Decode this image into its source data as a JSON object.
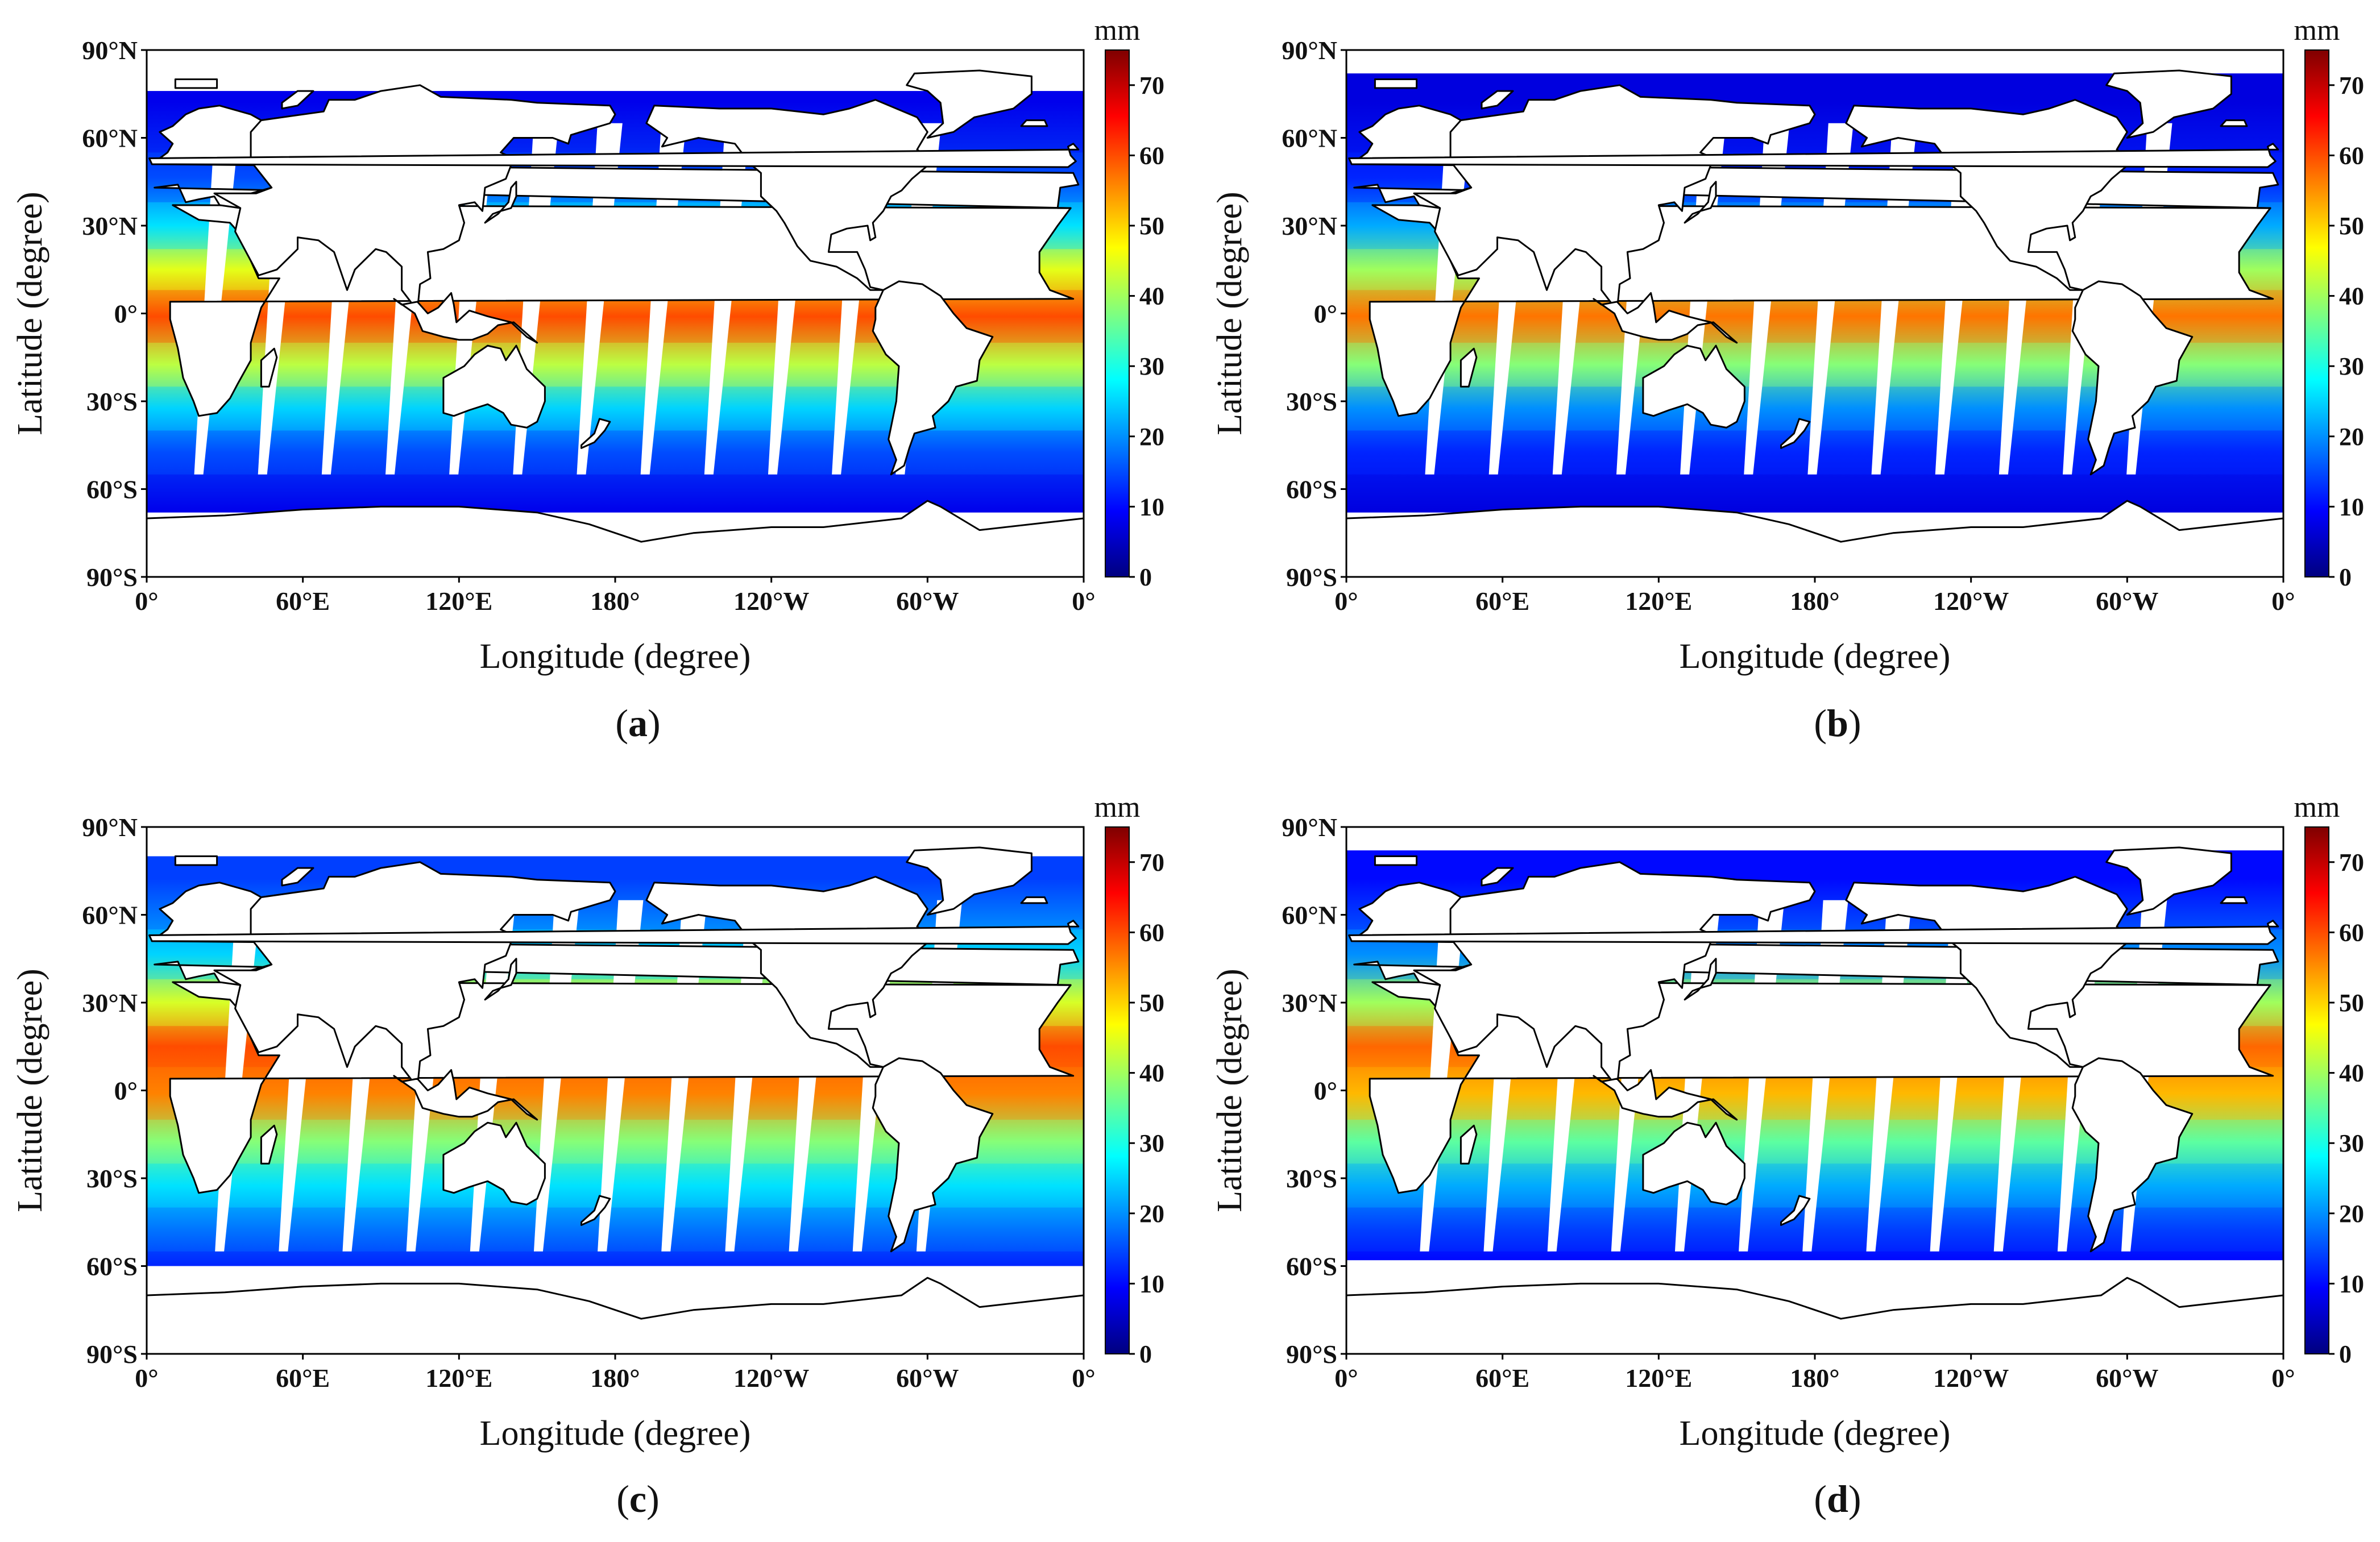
{
  "chart_data": [
    {
      "type": "heatmap",
      "panel_label": "a",
      "xlabel": "Longitude (degree)",
      "ylabel": "Latitude (degree)",
      "x_ticks": [
        "0°",
        "60°E",
        "120°E",
        "180°",
        "120°W",
        "60°W",
        "0°"
      ],
      "y_ticks": [
        "90°N",
        "60°N",
        "30°N",
        "0°",
        "30°S",
        "60°S",
        "90°S"
      ],
      "xlim": [
        0,
        360
      ],
      "ylim": [
        -90,
        90
      ],
      "colorbar": {
        "unit": "mm",
        "range": [
          0,
          75
        ],
        "ticks": [
          0,
          10,
          20,
          30,
          40,
          50,
          60,
          70
        ]
      },
      "ice_edge": {
        "north": 76,
        "south": -68
      },
      "swath_gaps": {
        "count": 12,
        "first_lon": 20,
        "spacing": 24.5,
        "lat_range": [
          -55,
          65
        ]
      },
      "zones": [
        {
          "lat": [
            -90,
            -55
          ],
          "value": 8
        },
        {
          "lat": [
            -55,
            -40
          ],
          "value": 15
        },
        {
          "lat": [
            -40,
            -25
          ],
          "value": 25
        },
        {
          "lat": [
            -25,
            -10
          ],
          "value": 42
        },
        {
          "lat": [
            -10,
            8
          ],
          "value": 60
        },
        {
          "lat": [
            8,
            22
          ],
          "value": 45
        },
        {
          "lat": [
            22,
            38
          ],
          "value": 26
        },
        {
          "lat": [
            38,
            55
          ],
          "value": 15
        },
        {
          "lat": [
            55,
            90
          ],
          "value": 8
        }
      ]
    },
    {
      "type": "heatmap",
      "panel_label": "b",
      "xlabel": "Longitude (degree)",
      "ylabel": "Latitude (degree)",
      "x_ticks": [
        "0°",
        "60°E",
        "120°E",
        "180°",
        "120°W",
        "60°W",
        "0°"
      ],
      "y_ticks": [
        "90°N",
        "60°N",
        "30°N",
        "0°",
        "30°S",
        "60°S",
        "90°S"
      ],
      "xlim": [
        0,
        360
      ],
      "ylim": [
        -90,
        90
      ],
      "colorbar": {
        "unit": "mm",
        "range": [
          0,
          75
        ],
        "ticks": [
          0,
          10,
          20,
          30,
          40,
          50,
          60,
          70
        ]
      },
      "ice_edge": {
        "north": 82,
        "south": -68
      },
      "swath_gaps": {
        "count": 12,
        "first_lon": 32,
        "spacing": 24.5,
        "lat_range": [
          -55,
          65
        ]
      },
      "zones": [
        {
          "lat": [
            -90,
            -55
          ],
          "value": 7
        },
        {
          "lat": [
            -55,
            -40
          ],
          "value": 12
        },
        {
          "lat": [
            -40,
            -25
          ],
          "value": 20
        },
        {
          "lat": [
            -25,
            -10
          ],
          "value": 38
        },
        {
          "lat": [
            -10,
            8
          ],
          "value": 57
        },
        {
          "lat": [
            8,
            22
          ],
          "value": 40
        },
        {
          "lat": [
            22,
            38
          ],
          "value": 22
        },
        {
          "lat": [
            38,
            55
          ],
          "value": 12
        },
        {
          "lat": [
            55,
            90
          ],
          "value": 7
        }
      ]
    },
    {
      "type": "heatmap",
      "panel_label": "c",
      "xlabel": "Longitude (degree)",
      "ylabel": "Latitude (degree)",
      "x_ticks": [
        "0°",
        "60°E",
        "120°E",
        "180°",
        "120°W",
        "60°W",
        "0°"
      ],
      "y_ticks": [
        "90°N",
        "60°N",
        "30°N",
        "0°",
        "30°S",
        "60°S",
        "90°S"
      ],
      "xlim": [
        0,
        360
      ],
      "ylim": [
        -90,
        90
      ],
      "colorbar": {
        "unit": "mm",
        "range": [
          0,
          75
        ],
        "ticks": [
          0,
          10,
          20,
          30,
          40,
          50,
          60,
          70
        ]
      },
      "ice_edge": {
        "north": 80,
        "south": -60
      },
      "swath_gaps": {
        "count": 12,
        "first_lon": 28,
        "spacing": 24.5,
        "lat_range": [
          -55,
          65
        ]
      },
      "zones": [
        {
          "lat": [
            -90,
            -55
          ],
          "value": 12
        },
        {
          "lat": [
            -55,
            -40
          ],
          "value": 18
        },
        {
          "lat": [
            -40,
            -25
          ],
          "value": 26
        },
        {
          "lat": [
            -25,
            -10
          ],
          "value": 38
        },
        {
          "lat": [
            -10,
            8
          ],
          "value": 56
        },
        {
          "lat": [
            8,
            22
          ],
          "value": 60
        },
        {
          "lat": [
            22,
            38
          ],
          "value": 44
        },
        {
          "lat": [
            38,
            55
          ],
          "value": 25
        },
        {
          "lat": [
            55,
            90
          ],
          "value": 14
        }
      ]
    },
    {
      "type": "heatmap",
      "panel_label": "d",
      "xlabel": "Longitude (degree)",
      "ylabel": "Latitude (degree)",
      "x_ticks": [
        "0°",
        "60°E",
        "120°E",
        "180°",
        "120°W",
        "60°W",
        "0°"
      ],
      "y_ticks": [
        "90°N",
        "60°N",
        "30°N",
        "0°",
        "30°S",
        "60°S",
        "90°S"
      ],
      "xlim": [
        0,
        360
      ],
      "ylim": [
        -90,
        90
      ],
      "colorbar": {
        "unit": "mm",
        "range": [
          0,
          75
        ],
        "ticks": [
          0,
          10,
          20,
          30,
          40,
          50,
          60,
          70
        ]
      },
      "ice_edge": {
        "north": 82,
        "south": -58
      },
      "swath_gaps": {
        "count": 12,
        "first_lon": 30,
        "spacing": 24.5,
        "lat_range": [
          -55,
          65
        ]
      },
      "zones": [
        {
          "lat": [
            -90,
            -55
          ],
          "value": 10
        },
        {
          "lat": [
            -55,
            -40
          ],
          "value": 14
        },
        {
          "lat": [
            -40,
            -25
          ],
          "value": 22
        },
        {
          "lat": [
            -25,
            -10
          ],
          "value": 35
        },
        {
          "lat": [
            -10,
            8
          ],
          "value": 52
        },
        {
          "lat": [
            8,
            22
          ],
          "value": 58
        },
        {
          "lat": [
            22,
            38
          ],
          "value": 40
        },
        {
          "lat": [
            38,
            55
          ],
          "value": 20
        },
        {
          "lat": [
            55,
            90
          ],
          "value": 10
        }
      ]
    }
  ],
  "colors": {
    "colormap_jet": [
      "#00007f",
      "#0000ff",
      "#007fff",
      "#00ffff",
      "#7fff7f",
      "#ffff00",
      "#ff7f00",
      "#ff0000",
      "#7f0000"
    ],
    "land": "#ffffff",
    "frame": "#000000"
  }
}
